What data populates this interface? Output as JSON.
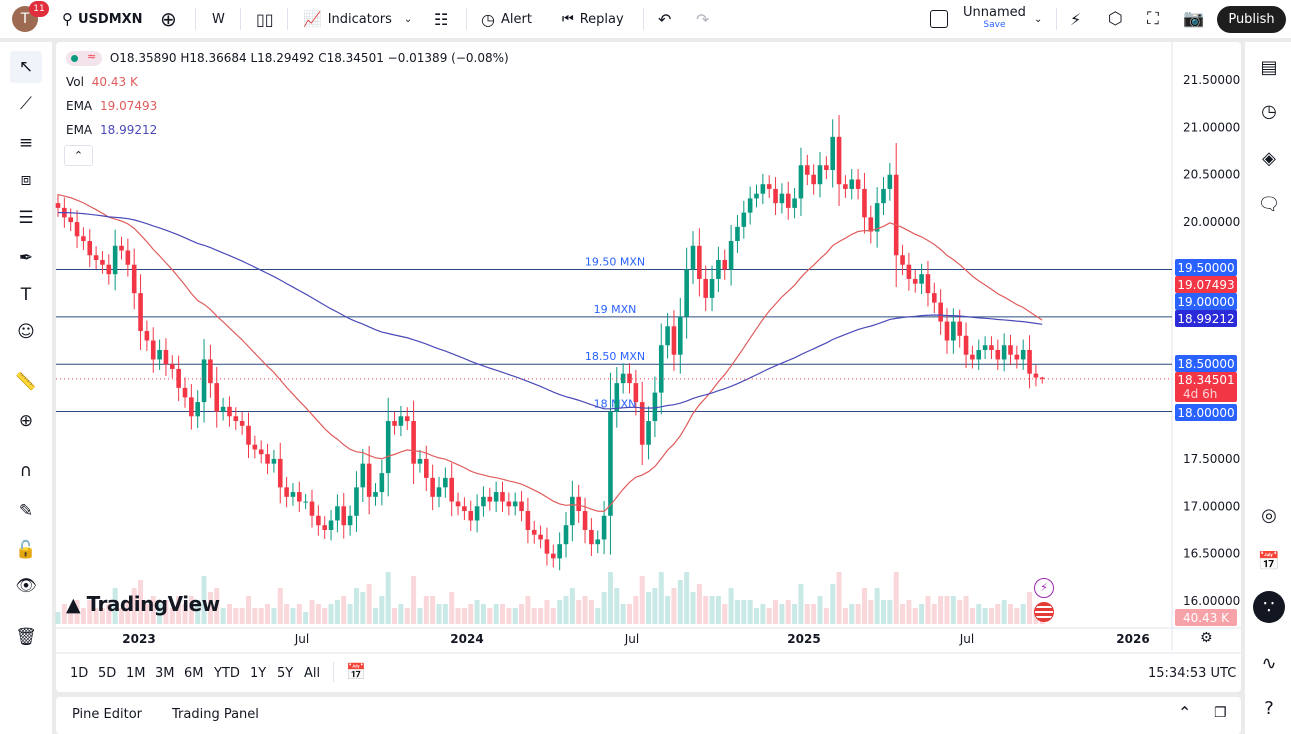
{
  "header": {
    "avatar_letter": "T",
    "notifications": "11",
    "symbol": "USDMXN",
    "interval": "W",
    "indicators": "Indicators",
    "alert": "Alert",
    "replay": "Replay",
    "layout_name": "Unnamed",
    "save": "Save",
    "publish": "Publish"
  },
  "legend": {
    "ohlc": "O18.35890 H18.36684 L18.29492 C18.34501 −0.01389 (−0.08%)",
    "vol_label": "Vol",
    "vol_value": "40.43 K",
    "ema1_label": "EMA",
    "ema1_value": "19.07493",
    "ema2_label": "EMA",
    "ema2_value": "18.99212"
  },
  "colors": {
    "up": "#089981",
    "down": "#f23645",
    "ema_fast": "#e05c5c",
    "ema_slow": "#4a4ab8",
    "hline": "#2a4a7f",
    "label_blue": "#2962ff"
  },
  "price_labels": {
    "p1950": "19.50000",
    "ema_fast": "19.07493",
    "p1900": "19.00000",
    "ema_slow": "18.99212",
    "p1850": "18.50000",
    "last": "18.34501",
    "countdown": "4d 6h",
    "p1800": "18.00000",
    "vol": "40.43 K"
  },
  "time_axis": [
    "2023",
    "Jul",
    "2024",
    "Jul",
    "2025",
    "Jul",
    "2026"
  ],
  "ranges": [
    "1D",
    "5D",
    "1M",
    "3M",
    "6M",
    "YTD",
    "1Y",
    "5Y",
    "All"
  ],
  "clock": "15:34:53 UTC",
  "bottom": {
    "pine": "Pine Editor",
    "trading": "Trading Panel"
  },
  "watermark": "TradingView",
  "chart_data": {
    "type": "candlestick",
    "symbol": "USDMXN",
    "interval": "weekly",
    "ylim": [
      16.0,
      21.5
    ],
    "yticks": [
      "21.50000",
      "21.00000",
      "20.50000",
      "20.00000",
      "19.50000",
      "19.00000",
      "18.50000",
      "18.00000",
      "17.50000",
      "17.00000",
      "16.50000",
      "16.00000"
    ],
    "last_candle": {
      "open": 18.3589,
      "high": 18.36684,
      "low": 18.29492,
      "close": 18.34501
    },
    "close": [
      20.15,
      20.05,
      20.0,
      19.85,
      19.8,
      19.65,
      19.6,
      19.55,
      19.45,
      19.75,
      19.7,
      19.55,
      19.25,
      18.85,
      18.75,
      18.55,
      18.65,
      18.5,
      18.45,
      18.25,
      18.15,
      17.95,
      18.1,
      18.55,
      18.3,
      18.0,
      18.05,
      17.95,
      17.9,
      17.85,
      17.65,
      17.6,
      17.55,
      17.45,
      17.5,
      17.2,
      17.1,
      17.15,
      17.05,
      17.05,
      16.9,
      16.8,
      16.75,
      16.85,
      17.0,
      16.8,
      16.9,
      17.2,
      17.45,
      17.1,
      17.15,
      17.35,
      17.9,
      17.85,
      17.95,
      17.9,
      17.45,
      17.5,
      17.3,
      17.1,
      17.2,
      17.3,
      17.05,
      17.0,
      16.95,
      16.85,
      17.0,
      17.1,
      17.05,
      17.15,
      17.05,
      17.0,
      17.05,
      16.95,
      16.75,
      16.7,
      16.65,
      16.5,
      16.45,
      16.6,
      16.8,
      17.1,
      16.95,
      16.75,
      16.6,
      16.65,
      16.9,
      18.0,
      18.3,
      18.4,
      18.3,
      18.1,
      17.65,
      17.9,
      18.2,
      18.7,
      18.9,
      18.6,
      19.0,
      19.5,
      19.75,
      19.4,
      19.2,
      19.4,
      19.6,
      19.5,
      19.8,
      19.95,
      20.1,
      20.25,
      20.3,
      20.4,
      20.35,
      20.2,
      20.3,
      20.15,
      20.25,
      20.6,
      20.5,
      20.4,
      20.6,
      20.55,
      20.9,
      20.4,
      20.35,
      20.45,
      20.35,
      20.05,
      19.9,
      20.2,
      20.35,
      20.5,
      19.65,
      19.55,
      19.4,
      19.35,
      19.45,
      19.25,
      19.15,
      18.95,
      18.75,
      18.95,
      18.8,
      18.6,
      18.55,
      18.65,
      18.7,
      18.65,
      18.55,
      18.7,
      18.6,
      18.55,
      18.65,
      18.4,
      18.3589,
      18.34501
    ],
    "horizontal_lines": [
      {
        "price": 19.5,
        "label": "19.50 MXN"
      },
      {
        "price": 19.0,
        "label": "19 MXN"
      },
      {
        "price": 18.5,
        "label": "18.50 MXN"
      },
      {
        "price": 18.0,
        "label": "18 MXN"
      }
    ],
    "ema": [
      {
        "value": 19.07493,
        "color": "#e05c5c"
      },
      {
        "value": 18.99212,
        "color": "#4a4ab8"
      }
    ]
  }
}
